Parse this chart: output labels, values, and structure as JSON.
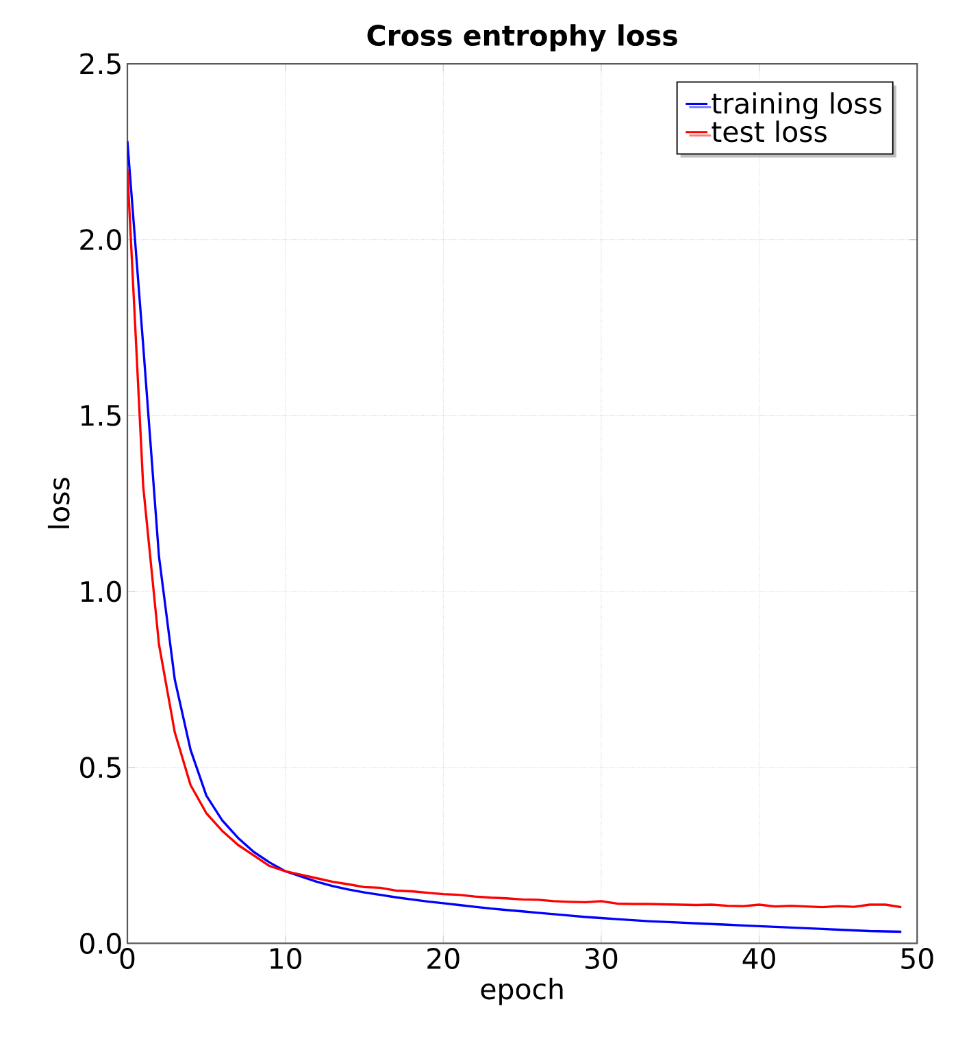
{
  "chart_data": {
    "type": "line",
    "title": "Cross entrophy loss",
    "xlabel": "epoch",
    "ylabel": "loss",
    "x": [
      0,
      1,
      2,
      3,
      4,
      5,
      6,
      7,
      8,
      9,
      10,
      11,
      12,
      13,
      14,
      15,
      16,
      17,
      18,
      19,
      20,
      21,
      22,
      23,
      24,
      25,
      26,
      27,
      28,
      29,
      30,
      31,
      32,
      33,
      34,
      35,
      36,
      37,
      38,
      39,
      40,
      41,
      42,
      43,
      44,
      45,
      46,
      47,
      48,
      49
    ],
    "series": [
      {
        "name": "training loss",
        "color": "#0000ff",
        "values": [
          2.28,
          1.7,
          1.1,
          0.75,
          0.55,
          0.42,
          0.35,
          0.3,
          0.26,
          0.23,
          0.205,
          0.19,
          0.175,
          0.163,
          0.153,
          0.145,
          0.138,
          0.131,
          0.125,
          0.119,
          0.114,
          0.109,
          0.104,
          0.099,
          0.095,
          0.091,
          0.087,
          0.083,
          0.079,
          0.075,
          0.072,
          0.069,
          0.066,
          0.063,
          0.061,
          0.059,
          0.057,
          0.055,
          0.053,
          0.051,
          0.049,
          0.047,
          0.045,
          0.043,
          0.041,
          0.039,
          0.037,
          0.035,
          0.034,
          0.033
        ]
      },
      {
        "name": "test loss",
        "color": "#ff0000",
        "values": [
          2.2,
          1.3,
          0.85,
          0.6,
          0.45,
          0.37,
          0.32,
          0.28,
          0.25,
          0.22,
          0.205,
          0.195,
          0.185,
          0.175,
          0.168,
          0.16,
          0.158,
          0.15,
          0.148,
          0.144,
          0.14,
          0.138,
          0.133,
          0.13,
          0.128,
          0.125,
          0.124,
          0.12,
          0.118,
          0.117,
          0.12,
          0.113,
          0.112,
          0.112,
          0.111,
          0.11,
          0.109,
          0.11,
          0.107,
          0.106,
          0.11,
          0.105,
          0.107,
          0.105,
          0.103,
          0.106,
          0.104,
          0.11,
          0.11,
          0.103
        ]
      }
    ],
    "xlim": [
      0,
      50
    ],
    "xticks": [
      0,
      10,
      20,
      30,
      40,
      50
    ],
    "ylim": [
      0,
      2.5
    ],
    "yticks": [
      {
        "value": 0,
        "label": "0.0"
      },
      {
        "value": 0.5,
        "label": "0.5"
      },
      {
        "value": 1,
        "label": "1.0"
      },
      {
        "value": 1.5,
        "label": "1.5"
      },
      {
        "value": 2,
        "label": "2.0"
      },
      {
        "value": 2.5,
        "label": "2.5"
      }
    ],
    "grid": true,
    "legend": "top right",
    "line_style": "solid",
    "marker": "none"
  }
}
